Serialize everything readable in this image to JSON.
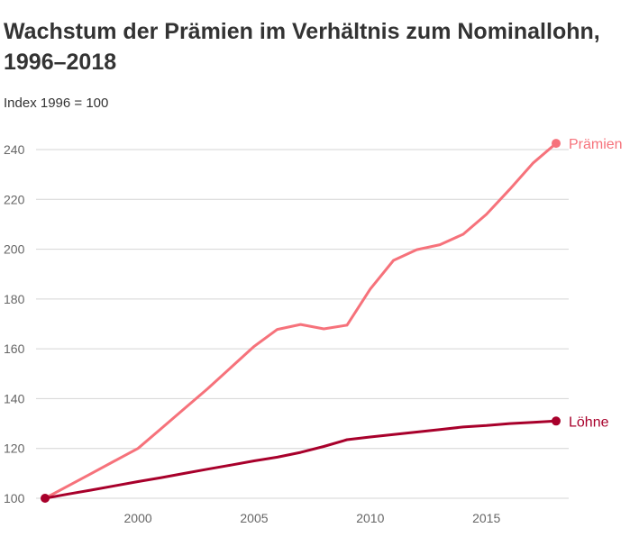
{
  "chart_data": {
    "type": "line",
    "title": "Wachstum der Prämien im Verhältnis zum Nominallohn, 1996–2018",
    "subtitle": "Index 1996 = 100",
    "xlabel": "",
    "ylabel": "",
    "xlim": [
      1996,
      2018
    ],
    "ylim": [
      100,
      245
    ],
    "xticks": [
      2000,
      2005,
      2010,
      2015
    ],
    "yticks": [
      100,
      120,
      140,
      160,
      180,
      200,
      220,
      240
    ],
    "grid": true,
    "legend": "direct labels at line ends",
    "series": [
      {
        "name": "Prämien",
        "color": "#f6727b",
        "x": [
          1996,
          1997,
          1998,
          1999,
          2000,
          2001,
          2002,
          2003,
          2004,
          2005,
          2006,
          2007,
          2008,
          2009,
          2010,
          2011,
          2012,
          2013,
          2014,
          2015,
          2016,
          2017,
          2018
        ],
        "values": [
          100,
          105,
          110,
          115,
          120,
          128,
          136,
          144,
          152.5,
          161,
          167.8,
          169.8,
          168,
          169.5,
          184,
          195.5,
          199.8,
          201.8,
          206,
          214,
          224,
          234.5,
          242.5
        ]
      },
      {
        "name": "Löhne",
        "color": "#a8002b",
        "x": [
          1996,
          1997,
          1998,
          1999,
          2000,
          2001,
          2002,
          2003,
          2004,
          2005,
          2006,
          2007,
          2008,
          2009,
          2010,
          2011,
          2012,
          2013,
          2014,
          2015,
          2016,
          2017,
          2018
        ],
        "values": [
          100,
          101.7,
          103.3,
          105,
          106.7,
          108.3,
          110,
          111.7,
          113.3,
          115,
          116.5,
          118.4,
          120.8,
          123.5,
          124.6,
          125.6,
          126.6,
          127.6,
          128.6,
          129.2,
          130,
          130.5,
          131
        ]
      }
    ]
  }
}
